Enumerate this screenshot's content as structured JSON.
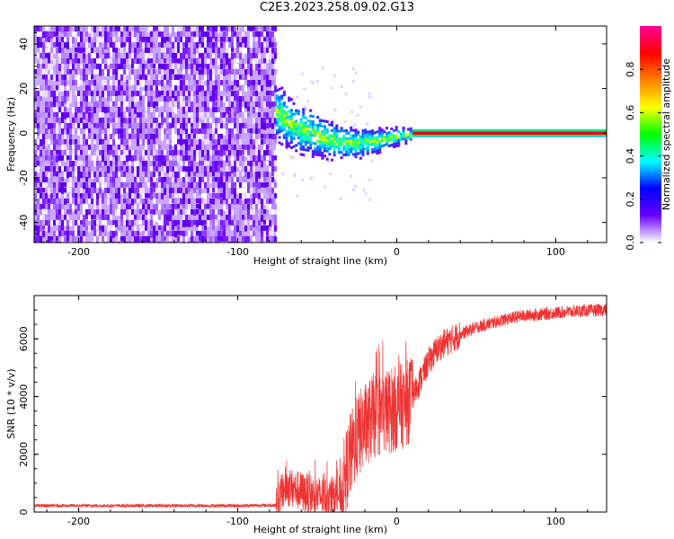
{
  "title": "C2E3.2023.258.09.02.G13",
  "chart_data": [
    {
      "type": "heatmap",
      "xlabel": "Height of straight line (km)",
      "ylabel": "Frequency (Hz)",
      "xlim": [
        -228,
        132
      ],
      "ylim": [
        -49,
        48
      ],
      "xticks": [
        -200,
        -100,
        0,
        100
      ],
      "yticks": [
        -40,
        -20,
        0,
        20,
        40
      ],
      "colorbar": {
        "label": "Normalized spectral amplitude",
        "range": [
          0,
          1
        ],
        "ticks": [
          0.0,
          0.2,
          0.4,
          0.6,
          0.8
        ],
        "colors": [
          "#ffffff",
          "#6a00ff",
          "#0000ff",
          "#00ffff",
          "#00ff00",
          "#ffff00",
          "#ff8000",
          "#ff0000",
          "#ff0099"
        ]
      },
      "regions": [
        {
          "name": "noise",
          "x_range": [
            -228,
            -76
          ],
          "f_range": [
            -49,
            48
          ],
          "amplitude": 0.1
        },
        {
          "name": "transition",
          "x_range": [
            -76,
            10
          ],
          "center_f": [
            10,
            3,
            0,
            -3,
            -4,
            -3,
            -1,
            0
          ],
          "amplitude": 0.4
        },
        {
          "name": "carrier",
          "x_range": [
            10,
            132
          ],
          "f_range": [
            -1.5,
            1.5
          ],
          "amplitude": 0.95
        }
      ]
    },
    {
      "type": "line",
      "xlabel": "Height of straight line (km)",
      "ylabel": "SNR (10 * v/v)",
      "xlim": [
        -228,
        132
      ],
      "ylim": [
        0,
        7500
      ],
      "xticks": [
        -200,
        -100,
        0,
        100
      ],
      "yticks": [
        0,
        2000,
        4000,
        6000
      ],
      "color": "#ee3333",
      "x": [
        -228,
        -150,
        -100,
        -76,
        -70,
        -60,
        -50,
        -40,
        -35,
        -30,
        -25,
        -20,
        -15,
        -10,
        -5,
        0,
        5,
        10,
        15,
        20,
        25,
        30,
        40,
        50,
        60,
        70,
        80,
        90,
        100,
        110,
        120,
        132
      ],
      "y": [
        220,
        220,
        220,
        240,
        900,
        700,
        550,
        500,
        650,
        1800,
        2600,
        3000,
        3300,
        3400,
        3500,
        3600,
        3700,
        4000,
        4600,
        5200,
        5600,
        5850,
        6150,
        6400,
        6550,
        6700,
        6800,
        6850,
        6900,
        6950,
        6980,
        7000
      ]
    }
  ]
}
